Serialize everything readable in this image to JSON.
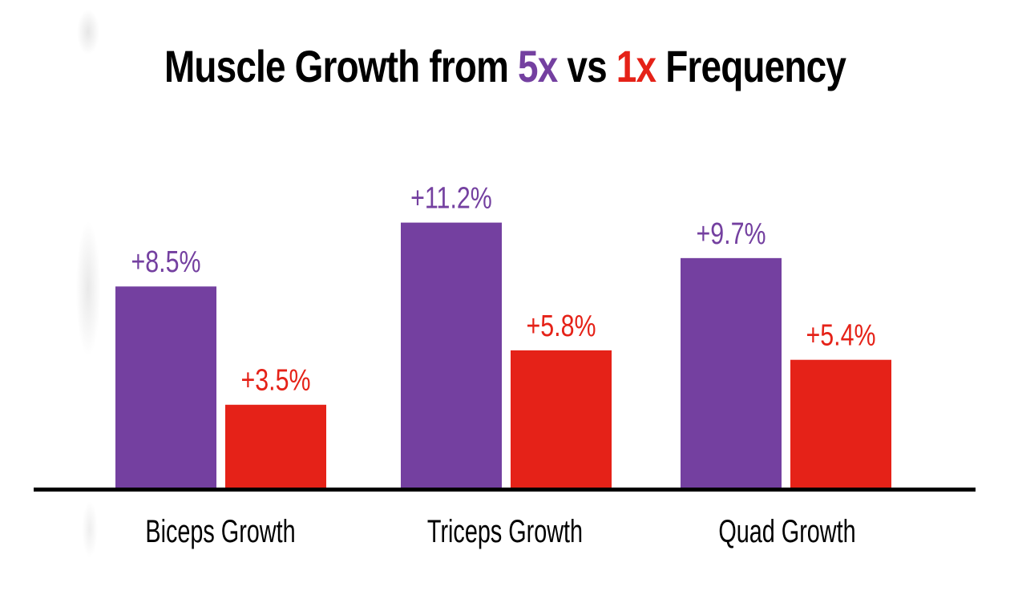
{
  "title": {
    "prefix": "Muscle Growth from ",
    "highlight_a": "5x",
    "middle": " vs ",
    "highlight_b": "1x",
    "suffix": " Frequency"
  },
  "colors": {
    "series_5x": "#7440a0",
    "series_1x": "#e52218",
    "axis": "#000000"
  },
  "chart_data": {
    "type": "bar",
    "title": "Muscle Growth from 5x vs 1x Frequency",
    "categories": [
      "Biceps Growth",
      "Triceps Growth",
      "Quad Growth"
    ],
    "series": [
      {
        "name": "5x",
        "values": [
          8.5,
          11.2,
          9.7
        ],
        "labels": [
          "+8.5%",
          "+11.2%",
          "+9.7%"
        ],
        "color": "#7440a0"
      },
      {
        "name": "1x",
        "values": [
          3.5,
          5.8,
          5.4
        ],
        "labels": [
          "+3.5%",
          "+5.8%",
          "+5.4%"
        ],
        "color": "#e52218"
      }
    ],
    "xlabel": "",
    "ylabel": "",
    "ylim": [
      0,
      14
    ],
    "grid": false,
    "legend": "none (encoded in title colors)"
  }
}
